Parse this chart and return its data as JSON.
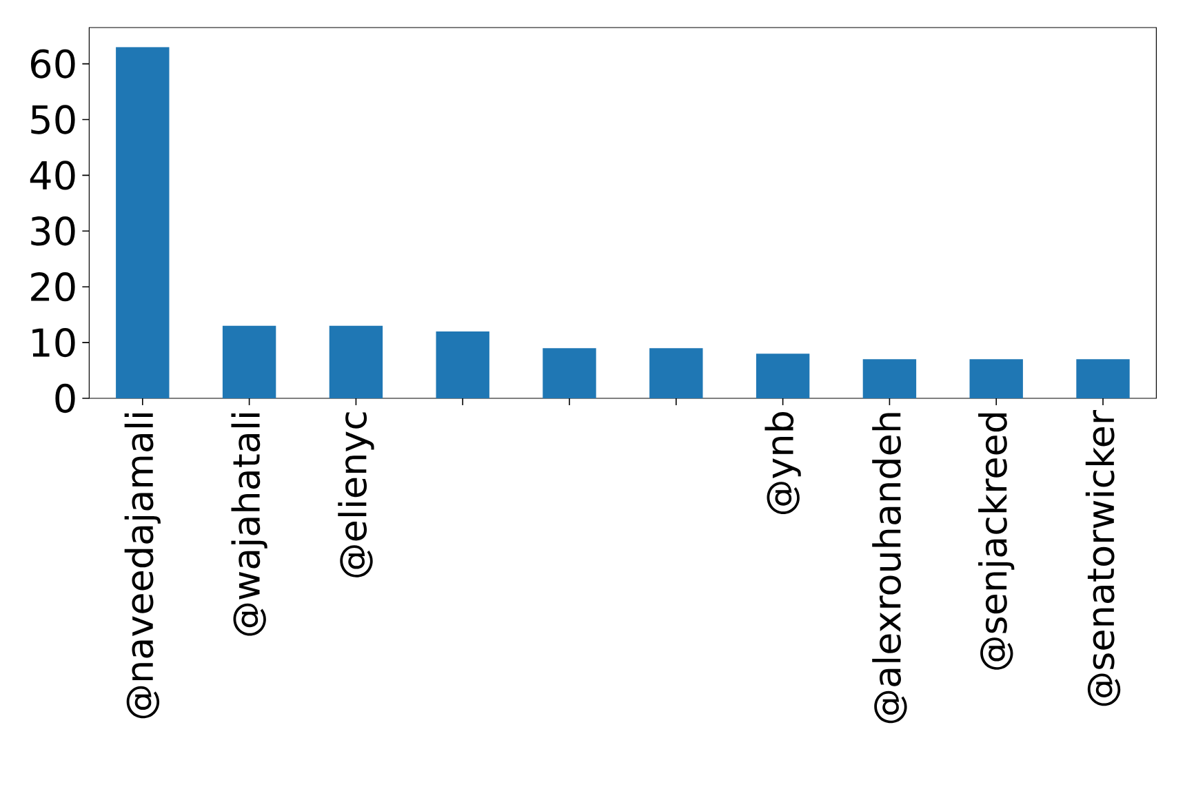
{
  "chart_data": {
    "type": "bar",
    "categories": [
      "@naveedajamali",
      "@wajahatali",
      "@elienyc",
      null,
      null,
      null,
      "@ynb",
      "@alexrouhandeh",
      "@senjackreed",
      "@senatorwicker"
    ],
    "values": [
      63,
      13,
      13,
      12,
      9,
      9,
      8,
      7,
      7,
      7
    ],
    "color": "#1f77b4",
    "ylim": [
      0,
      66.5
    ],
    "yticks": [
      0,
      10,
      20,
      30,
      40,
      50,
      60
    ],
    "grid": false
  }
}
